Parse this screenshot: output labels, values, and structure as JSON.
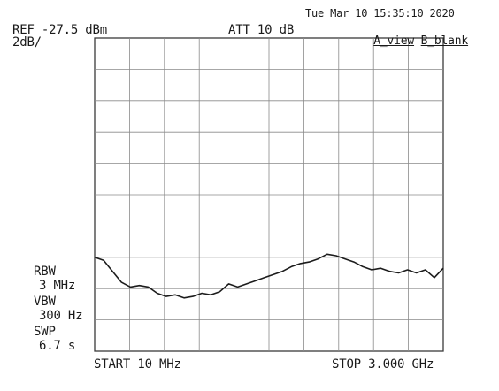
{
  "header": {
    "datetime": "Tue Mar 10 15:35:10 2020",
    "ref_level": "REF -27.5 dBm",
    "scale": "2dB/",
    "attenuation": "ATT 10 dB",
    "view_a": "A_view",
    "view_b": "B_blank"
  },
  "settings": {
    "rbw_label": "RBW",
    "rbw_value": "3 MHz",
    "vbw_label": "VBW",
    "vbw_value": "300 Hz",
    "swp_label": "SWP",
    "swp_value": "6.7 s"
  },
  "footer": {
    "start": "START 10 MHz",
    "stop": "STOP 3.000 GHz"
  },
  "chart_data": {
    "type": "line",
    "ylim": [
      -47.5,
      -27.5
    ],
    "divisions_x": 10,
    "divisions_y": 10,
    "grid": true,
    "series": [
      {
        "values": [
          -41.5,
          -41.7,
          -42.4,
          -43.1,
          -43.4,
          -43.3,
          -43.4,
          -43.8,
          -44.0,
          -43.9,
          -44.1,
          -44.0,
          -43.8,
          -43.9,
          -43.7,
          -43.2,
          -43.4,
          -43.2,
          -43.0,
          -42.8,
          -42.6,
          -42.4,
          -42.1,
          -41.9,
          -41.8,
          -41.6,
          -41.3,
          -41.4,
          -41.6,
          -41.8,
          -42.1,
          -42.3,
          -42.2,
          -42.4,
          -42.5,
          -42.3,
          -42.5,
          -42.3,
          -42.8,
          -42.2
        ]
      }
    ]
  },
  "colors": {
    "trace": "#1c1c1c",
    "grid": "#8a8a8a",
    "frame": "#3a3a3a"
  }
}
